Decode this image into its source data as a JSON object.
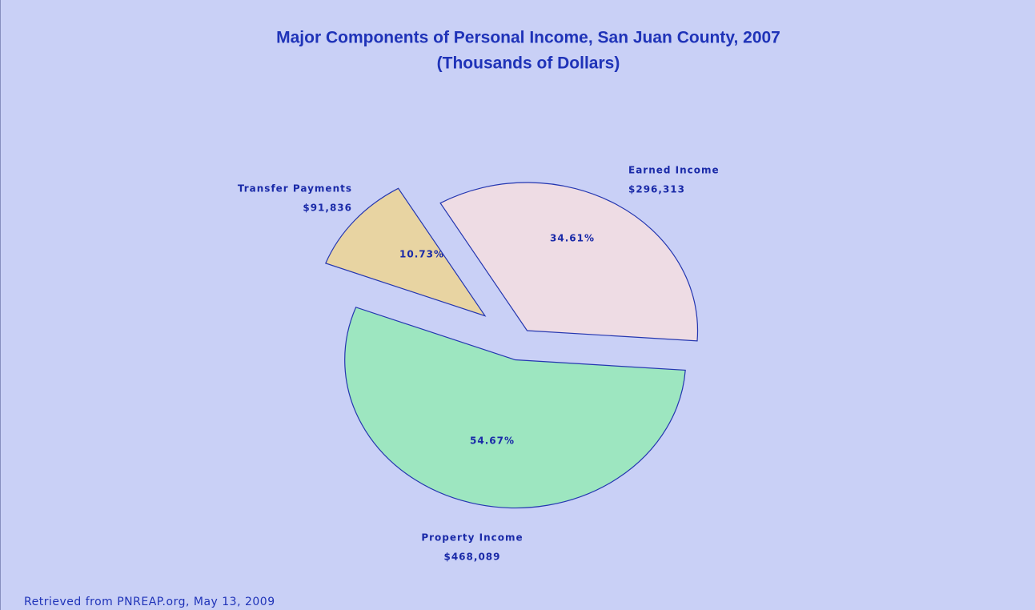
{
  "chart_data": {
    "type": "pie",
    "title": "Major Components of Personal Income, San Juan County, 2007",
    "subtitle": "(Thousands of Dollars)",
    "categories": [
      "Earned Income",
      "Transfer Payments",
      "Property Income"
    ],
    "values": [
      296313,
      91836,
      468089
    ],
    "value_labels": [
      "$296,313",
      "$91,836",
      "$468,089"
    ],
    "percent_labels": [
      "34.61%",
      "10.73%",
      "54.67%"
    ],
    "colors": [
      "#eedce4",
      "#e8d4a2",
      "#9de6c0"
    ],
    "source": "Retrieved from PNREAP.org, May 13, 2009"
  }
}
